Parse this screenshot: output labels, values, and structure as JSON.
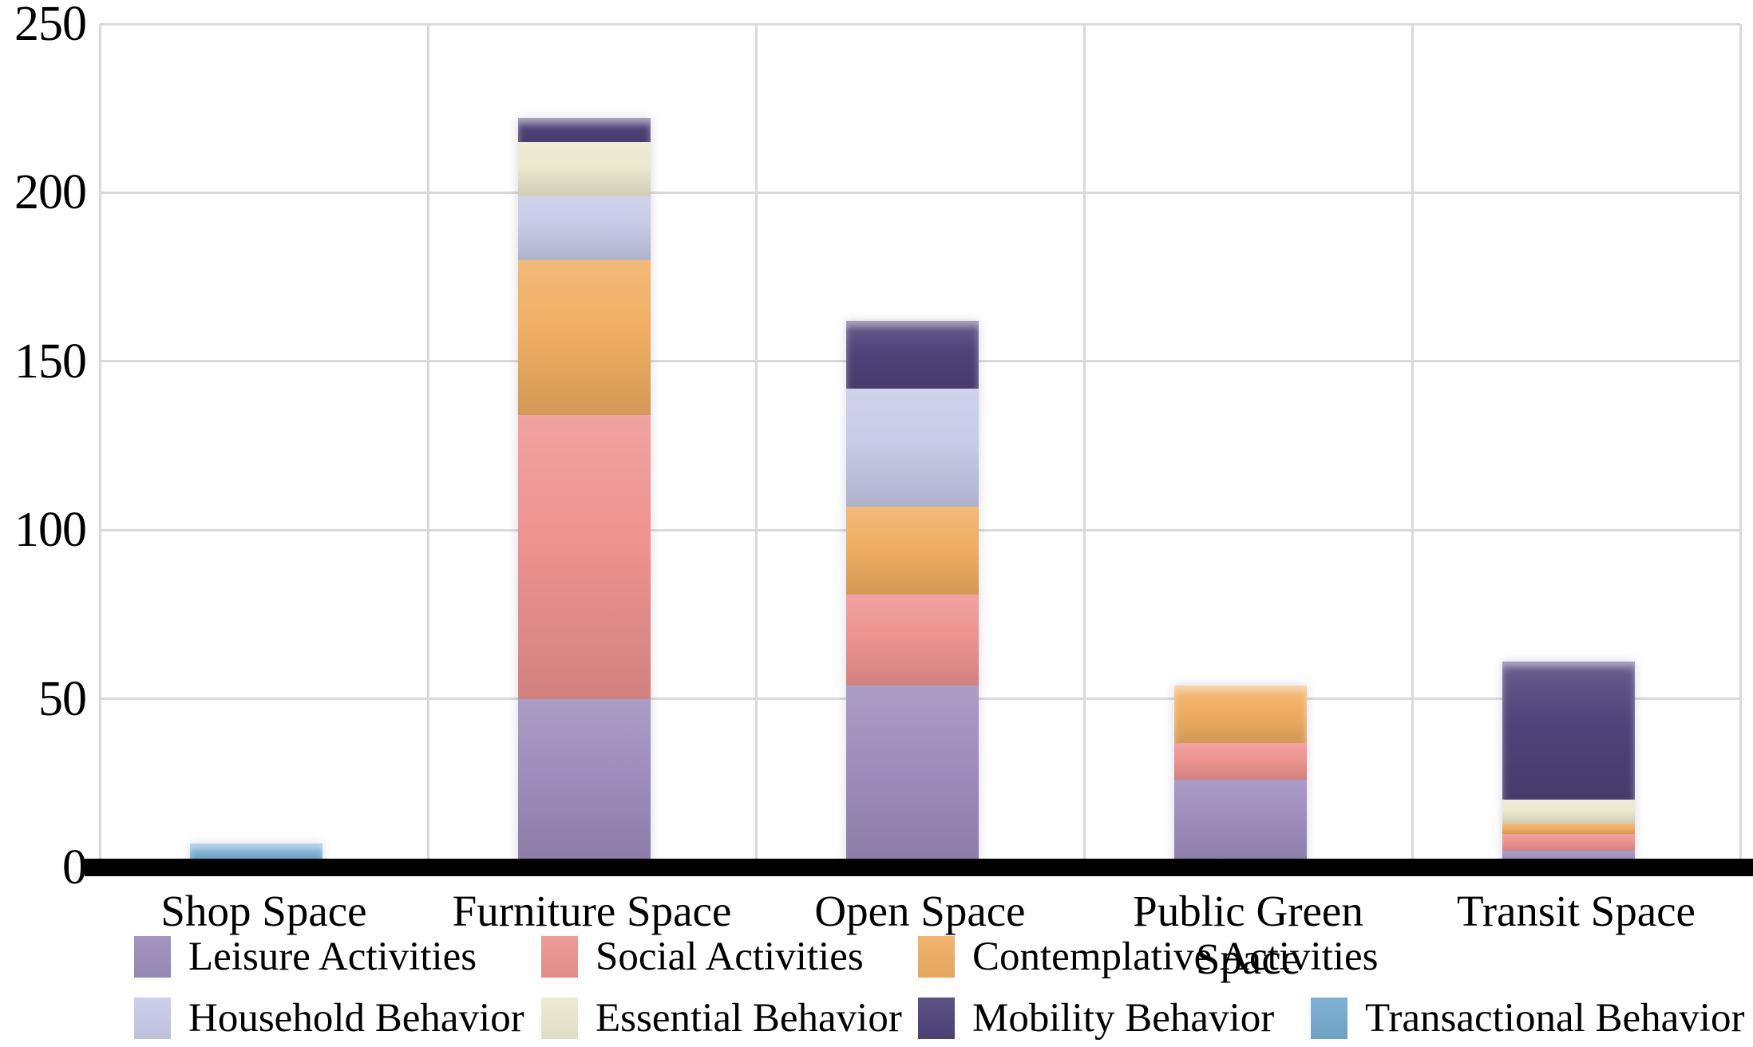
{
  "chart_data": {
    "type": "bar",
    "variant": "stacked-vertical",
    "title": "",
    "xlabel": "",
    "ylabel": "",
    "grid": true,
    "legend_position": "bottom",
    "ylim": [
      0,
      250
    ],
    "yticks": [
      0,
      50,
      100,
      150,
      200,
      250
    ],
    "categories": [
      "Shop Space",
      "Furniture Space",
      "Open Space",
      "Public Green Space",
      "Transit Space"
    ],
    "series": [
      {
        "name": "Leisure Activities",
        "color": "#9c8dbc",
        "values": [
          0,
          50,
          54,
          26,
          5
        ]
      },
      {
        "name": "Social Activities",
        "color": "#ed9390",
        "values": [
          0,
          84,
          27,
          11,
          5
        ]
      },
      {
        "name": "Contemplative Activities",
        "color": "#f0ae62",
        "values": [
          0,
          46,
          26,
          17,
          3
        ]
      },
      {
        "name": "Household Behavior",
        "color": "#c7cbe7",
        "values": [
          0,
          19,
          35,
          0,
          0
        ]
      },
      {
        "name": "Essential Behavior",
        "color": "#ebe9cf",
        "values": [
          0,
          16,
          0,
          0,
          7
        ]
      },
      {
        "name": "Mobility Behavior",
        "color": "#4f4379",
        "values": [
          0,
          7,
          20,
          0,
          41
        ]
      },
      {
        "name": "Transactional Behavior",
        "color": "#74aacf",
        "values": [
          7,
          0,
          0,
          0,
          0
        ]
      }
    ],
    "totals": [
      7,
      222,
      162,
      54,
      61
    ],
    "legend_rows": [
      [
        0,
        1,
        2
      ],
      [
        3,
        4,
        5,
        6
      ]
    ],
    "axis_color": "#000000",
    "gridline_color": "#dadada"
  }
}
